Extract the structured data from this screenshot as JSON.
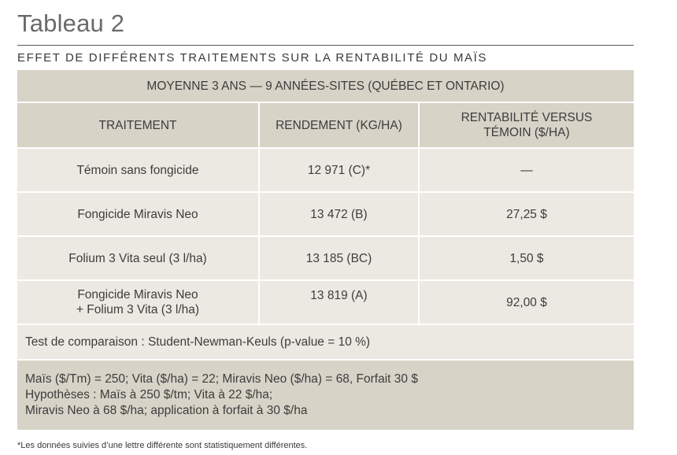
{
  "title": "Tableau 2",
  "subtitle": "EFFET DE DIFFÉRENTS TRAITEMENTS SUR LA RENTABILITÉ DU MAÏS",
  "table": {
    "band": "MOYENNE 3 ANS — 9 ANNÉES-SITES (QUÉBEC ET ONTARIO)",
    "headers": {
      "treatment": "TRAITEMENT",
      "yield": "RENDEMENT (KG/HA)",
      "profit_line1": "RENTABILITÉ VERSUS",
      "profit_line2": "TÉMOIN ($/HA)"
    },
    "rows": [
      {
        "treatment": "Témoin sans fongicide",
        "yield": "12 971 (C)*",
        "profit": "—"
      },
      {
        "treatment": "Fongicide Miravis Neo",
        "yield": "13 472 (B)",
        "profit": "27,25 $"
      },
      {
        "treatment": "Folium 3 Vita seul (3 l/ha)",
        "yield": "13 185 (BC)",
        "profit": "1,50 $"
      },
      {
        "treatment_line1": "Fongicide Miravis Neo",
        "treatment_line2": "+ Folium 3 Vita (3 l/ha)",
        "yield": "13 819 (A)",
        "profit": "92,00 $"
      }
    ],
    "test": "Test de comparaison : Student-Newman-Keuls (p-value = 10 %)",
    "notes": [
      "Maïs ($/Tm) = 250; Vita ($/ha) = 22; Miravis Neo ($/ha) = 68, Forfait 30 $",
      "Hypothèses : Maïs à 250 $/tm; Vita à 22 $/ha;",
      "Miravis Neo à 68 $/ha; application à forfait à 30 $/ha"
    ]
  },
  "footnote": "*Les données suivies d’une lettre différente sont statistiquement différentes.",
  "colors": {
    "header_bg": "#d7d3c7",
    "row_bg": "#ebe9e2",
    "title_color": "#6a6a6a"
  }
}
